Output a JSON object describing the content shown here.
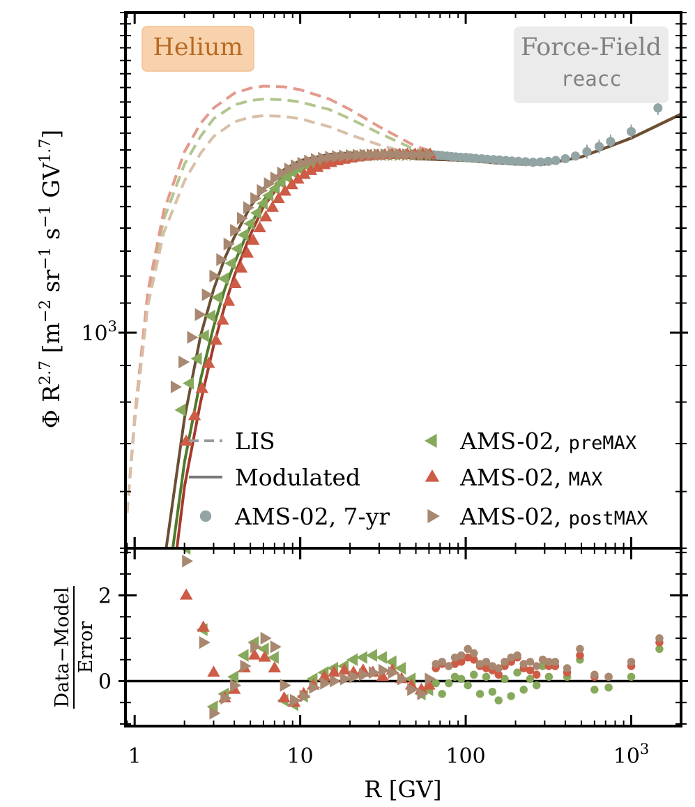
{
  "chart_data": {
    "type": "line",
    "element_badge": "Helium",
    "model_badge": {
      "line1": "Force-Field",
      "line2": "reacc"
    },
    "xlabel": "R [GV]",
    "x_ticks": [
      {
        "value": 1,
        "label": "1"
      },
      {
        "value": 10,
        "label": "10"
      },
      {
        "value": 100,
        "label": "100"
      },
      {
        "value": 1000,
        "label": "10",
        "sup": "3"
      }
    ],
    "xlim": [
      0.88,
      2000
    ],
    "top_panel": {
      "ylabel": "Φ R^2.7 [m^-2 sr^-1 s^-1 GV^1.7]",
      "ylabel_parts": {
        "main": "Φ R",
        "exp1": "2.7",
        "unit_a": "[m",
        "exp2": "−2",
        "unit_b": "sr",
        "exp3": "−1",
        "unit_c": "s",
        "exp4": "−1",
        "unit_d": "GV",
        "exp5": "1.7",
        "unit_e": "]"
      },
      "ylim": [
        500,
        2800
      ],
      "yscale": "log",
      "y_tick": {
        "value": 1000,
        "label": "10",
        "sup": "3"
      },
      "series": [
        {
          "name": "LIS preMAX",
          "style": "dashed",
          "color": "#b2c58f",
          "x": [
            0.9,
            1.0,
            1.2,
            1.5,
            2,
            2.5,
            3,
            4,
            5,
            6,
            8,
            10,
            15,
            20,
            30,
            50,
            70,
            100,
            150,
            200,
            300,
            500,
            1000,
            2000
          ],
          "y": [
            560,
            760,
            1130,
            1440,
            1720,
            1880,
            1990,
            2080,
            2110,
            2120,
            2115,
            2100,
            2050,
            1990,
            1900,
            1800,
            1770,
            1750,
            1730,
            1720,
            1720,
            1760,
            1870,
            2020
          ]
        },
        {
          "name": "LIS MAX",
          "style": "dashed",
          "color": "#e39a8c",
          "x": [
            0.9,
            1.0,
            1.2,
            1.5,
            2,
            2.5,
            3,
            4,
            5,
            6,
            8,
            10,
            15,
            20,
            30,
            50,
            70,
            100,
            150,
            200,
            300,
            500,
            1000,
            2000
          ],
          "y": [
            560,
            760,
            1140,
            1480,
            1790,
            1960,
            2060,
            2160,
            2195,
            2210,
            2205,
            2185,
            2120,
            2050,
            1940,
            1820,
            1780,
            1750,
            1730,
            1720,
            1720,
            1760,
            1870,
            2020
          ]
        },
        {
          "name": "LIS postMAX",
          "style": "dashed",
          "color": "#d8bfa8",
          "x": [
            0.9,
            1.0,
            1.2,
            1.5,
            2,
            2.5,
            3,
            4,
            5,
            6,
            8,
            10,
            15,
            20,
            30,
            50,
            70,
            100,
            150,
            200,
            300,
            500,
            1000,
            2000
          ],
          "y": [
            560,
            750,
            1090,
            1380,
            1630,
            1780,
            1880,
            1970,
            2000,
            2010,
            2005,
            1990,
            1940,
            1890,
            1830,
            1770,
            1750,
            1740,
            1725,
            1720,
            1720,
            1760,
            1870,
            2020
          ]
        },
        {
          "name": "Modulated preMAX",
          "style": "solid",
          "color": "#4f7a2b",
          "x": [
            1.7,
            2,
            2.5,
            3,
            3.5,
            4,
            5,
            6,
            8,
            10,
            15,
            20,
            30,
            50,
            70,
            100,
            150,
            200,
            300,
            500,
            1000,
            2000
          ],
          "y": [
            500,
            660,
            860,
            1020,
            1150,
            1250,
            1410,
            1530,
            1660,
            1720,
            1770,
            1780,
            1780,
            1750,
            1745,
            1740,
            1728,
            1720,
            1720,
            1760,
            1870,
            2020
          ]
        },
        {
          "name": "Modulated MAX",
          "style": "solid",
          "color": "#a63a2c",
          "x": [
            1.8,
            2,
            2.5,
            3,
            3.5,
            4,
            5,
            6,
            8,
            10,
            15,
            20,
            30,
            50,
            70,
            100,
            150,
            200,
            300,
            500,
            1000,
            2000
          ],
          "y": [
            500,
            610,
            800,
            960,
            1090,
            1200,
            1370,
            1500,
            1640,
            1710,
            1765,
            1778,
            1780,
            1750,
            1745,
            1740,
            1728,
            1720,
            1720,
            1760,
            1870,
            2020
          ]
        },
        {
          "name": "Modulated postMAX",
          "style": "solid",
          "color": "#6b4f35",
          "x": [
            1.55,
            2,
            2.5,
            3,
            3.5,
            4,
            5,
            6,
            8,
            10,
            15,
            20,
            30,
            50,
            70,
            100,
            150,
            200,
            300,
            500,
            1000,
            2000
          ],
          "y": [
            500,
            760,
            990,
            1150,
            1270,
            1360,
            1500,
            1590,
            1690,
            1740,
            1775,
            1782,
            1780,
            1750,
            1745,
            1740,
            1728,
            1720,
            1720,
            1760,
            1870,
            2020
          ]
        }
      ],
      "scatter": [
        {
          "name": "AMS-02, 7-yr",
          "marker": "circle",
          "color": "#93a4a4",
          "x": [
            60,
            64,
            68,
            72,
            77,
            82,
            87,
            93,
            100,
            107,
            115,
            125,
            135,
            147,
            160,
            175,
            190,
            208,
            230,
            255,
            283,
            315,
            350,
            400,
            460,
            540,
            640,
            750,
            1000,
            1450
          ],
          "y": [
            1775,
            1772,
            1770,
            1768,
            1765,
            1762,
            1760,
            1758,
            1757,
            1755,
            1752,
            1750,
            1747,
            1745,
            1743,
            1740,
            1737,
            1735,
            1733,
            1730,
            1732,
            1735,
            1740,
            1750,
            1765,
            1790,
            1820,
            1850,
            1910,
            2060
          ]
        },
        {
          "name": "AMS-02, preMAX",
          "marker": "tri-left",
          "color": "#86a95b",
          "x": [
            1.92,
            2.15,
            2.4,
            2.65,
            2.9,
            3.2,
            3.5,
            3.85,
            4.2,
            4.6,
            5.0,
            5.5,
            6.0,
            6.5,
            7.1,
            7.7,
            8.4,
            9.2,
            10,
            11,
            12,
            13.3,
            14.6,
            16,
            17.5,
            19.2,
            21,
            23,
            25.5,
            28,
            31,
            34,
            38,
            42,
            47,
            52,
            58
          ],
          "y": [
            780,
            850,
            920,
            990,
            1055,
            1120,
            1190,
            1250,
            1310,
            1370,
            1420,
            1470,
            1515,
            1555,
            1590,
            1620,
            1648,
            1672,
            1692,
            1710,
            1723,
            1734,
            1743,
            1750,
            1756,
            1761,
            1765,
            1768,
            1770,
            1772,
            1773,
            1774,
            1775,
            1775,
            1775,
            1775,
            1775
          ]
        },
        {
          "name": "AMS-02, MAX",
          "marker": "tri-up",
          "color": "#cd5b46",
          "x": [
            2.05,
            2.3,
            2.55,
            2.8,
            3.1,
            3.4,
            3.7,
            4.05,
            4.4,
            4.8,
            5.2,
            5.7,
            6.2,
            6.8,
            7.4,
            8.1,
            8.9,
            9.7,
            10.6,
            11.6,
            12.7,
            14,
            15.3,
            16.8,
            18.4,
            20.2,
            22.2,
            24.4,
            26.8,
            29.5,
            32.5,
            36,
            40,
            44.5,
            49.5,
            55,
            61
          ],
          "y": [
            705,
            765,
            835,
            905,
            975,
            1040,
            1105,
            1170,
            1230,
            1290,
            1345,
            1400,
            1450,
            1495,
            1538,
            1575,
            1608,
            1637,
            1662,
            1683,
            1700,
            1715,
            1727,
            1737,
            1745,
            1752,
            1758,
            1762,
            1766,
            1769,
            1771,
            1772,
            1773,
            1774,
            1774,
            1774,
            1774
          ]
        },
        {
          "name": "AMS-02, postMAX",
          "marker": "tri-right",
          "color": "#a88870",
          "x": [
            1.75,
            1.95,
            2.2,
            2.45,
            2.7,
            3.0,
            3.3,
            3.65,
            4.0,
            4.4,
            4.8,
            5.3,
            5.8,
            6.4,
            7.0,
            7.7,
            8.5,
            9.3,
            10.2,
            11.2,
            12.3,
            13.6,
            15,
            16.5,
            18.2,
            20,
            22,
            24.2,
            26.7,
            29.4,
            32.4,
            35.8,
            39.5,
            43.8,
            48.5,
            54,
            60
          ],
          "y": [
            840,
            910,
            985,
            1060,
            1130,
            1200,
            1265,
            1330,
            1390,
            1445,
            1495,
            1540,
            1580,
            1615,
            1645,
            1671,
            1693,
            1711,
            1725,
            1737,
            1746,
            1753,
            1759,
            1763,
            1766,
            1768,
            1770,
            1771,
            1772,
            1773,
            1773,
            1773,
            1773,
            1773,
            1773,
            1773,
            1773
          ]
        }
      ],
      "legend": {
        "position": "lower-right",
        "entries": [
          {
            "label": "LIS",
            "kind": "dashed"
          },
          {
            "label": "Modulated",
            "kind": "solid"
          },
          {
            "label": "AMS-02, 7-yr",
            "kind": "circle"
          },
          {
            "label": "AMS-02, ",
            "mono": "preMAX",
            "kind": "tri-left"
          },
          {
            "label": "AMS-02, ",
            "mono": "MAX",
            "kind": "tri-up"
          },
          {
            "label": "AMS-02, ",
            "mono": "postMAX",
            "kind": "tri-right"
          }
        ]
      }
    },
    "bottom_panel": {
      "ylabel_numerator": "Data−Model",
      "ylabel_denominator": "Error",
      "ylim": [
        -1.05,
        3.1
      ],
      "yticks": [
        {
          "value": 0,
          "label": "0"
        },
        {
          "value": 2,
          "label": "2"
        }
      ],
      "reference_line": 0,
      "series": [
        {
          "name": "preMAX residuals",
          "color": "#86a95b",
          "x": [
            2.05,
            2.6,
            3.0,
            3.5,
            4.0,
            4.6,
            5.3,
            6.1,
            7.0,
            8.0,
            9.2,
            10.5,
            12,
            14,
            16,
            18.5,
            21,
            24,
            27.5,
            31.5,
            36,
            41,
            47,
            54,
            60,
            66,
            72,
            79,
            86,
            94,
            103,
            112,
            122,
            133,
            145,
            158,
            172,
            188,
            205,
            224,
            245,
            268,
            292,
            318,
            347,
            410,
            490,
            600,
            730,
            1000,
            1480
          ],
          "y": [
            3.1,
            1.2,
            -0.6,
            -0.3,
            0.1,
            0.6,
            0.9,
            0.75,
            0.55,
            -0.45,
            -0.55,
            -0.35,
            0.05,
            0.2,
            0.3,
            0.35,
            0.5,
            0.55,
            0.6,
            0.55,
            0.45,
            0.3,
            0.05,
            -0.3,
            -0.2,
            -0.05,
            -0.3,
            -0.05,
            0.1,
            0.05,
            -0.1,
            0.15,
            -0.3,
            0.1,
            -0.25,
            -0.45,
            0.05,
            -0.35,
            0.2,
            -0.2,
            0.05,
            -0.1,
            0.35,
            0.1,
            0.35,
            0.1,
            0.5,
            -0.2,
            -0.15,
            0.1,
            0.75
          ]
        },
        {
          "name": "MAX residuals",
          "color": "#cd5b46",
          "x": [
            2.05,
            2.6,
            3.0,
            3.5,
            4.0,
            4.6,
            5.3,
            6.1,
            7.0,
            8.0,
            9.2,
            10.5,
            12,
            14,
            16,
            18.5,
            21,
            24,
            27.5,
            31.5,
            36,
            41,
            47,
            54,
            60,
            66,
            72,
            79,
            86,
            94,
            103,
            112,
            122,
            133,
            145,
            158,
            172,
            188,
            205,
            224,
            245,
            268,
            292,
            318,
            347,
            410,
            490,
            600,
            730,
            1000,
            1480
          ],
          "y": [
            2.0,
            1.25,
            0.2,
            -0.4,
            -0.2,
            0.3,
            0.6,
            0.55,
            0.3,
            -0.4,
            -0.5,
            -0.3,
            -0.1,
            0.1,
            0.2,
            0.25,
            0.2,
            0.25,
            0.2,
            0.1,
            0.25,
            0.05,
            -0.1,
            -0.2,
            -0.1,
            0.3,
            0.4,
            0.35,
            0.4,
            0.45,
            0.55,
            0.5,
            0.35,
            0.3,
            0.25,
            0.15,
            0.35,
            0.45,
            0.55,
            0.3,
            0.25,
            0.15,
            0.5,
            0.35,
            0.35,
            0.2,
            0.6,
            0.1,
            0.1,
            0.35,
            0.9
          ]
        },
        {
          "name": "postMAX residuals",
          "color": "#a88870",
          "x": [
            2.05,
            2.6,
            3.0,
            3.5,
            4.0,
            4.6,
            5.3,
            6.1,
            7.0,
            8.0,
            9.2,
            10.5,
            12,
            14,
            16,
            18.5,
            21,
            24,
            27.5,
            31.5,
            36,
            41,
            47,
            54,
            60,
            66,
            72,
            79,
            86,
            94,
            103,
            112,
            122,
            133,
            145,
            158,
            172,
            188,
            205,
            224,
            245,
            268,
            292,
            318,
            347,
            410,
            490,
            600,
            730,
            1000,
            1480
          ],
          "y": [
            2.8,
            0.9,
            -0.75,
            -0.4,
            -0.1,
            0.35,
            0.8,
            1.0,
            0.8,
            -0.1,
            -0.45,
            -0.35,
            -0.15,
            -0.05,
            0.0,
            0.05,
            0.1,
            0.15,
            0.2,
            0.25,
            0.2,
            0.05,
            -0.2,
            -0.3,
            0.05,
            0.4,
            0.45,
            0.35,
            0.55,
            0.6,
            0.75,
            0.65,
            0.4,
            0.45,
            0.35,
            0.3,
            0.45,
            0.55,
            0.6,
            0.4,
            0.45,
            0.35,
            0.5,
            0.45,
            0.45,
            0.3,
            0.75,
            0.15,
            0.1,
            0.45,
            1.0
          ]
        }
      ]
    }
  }
}
